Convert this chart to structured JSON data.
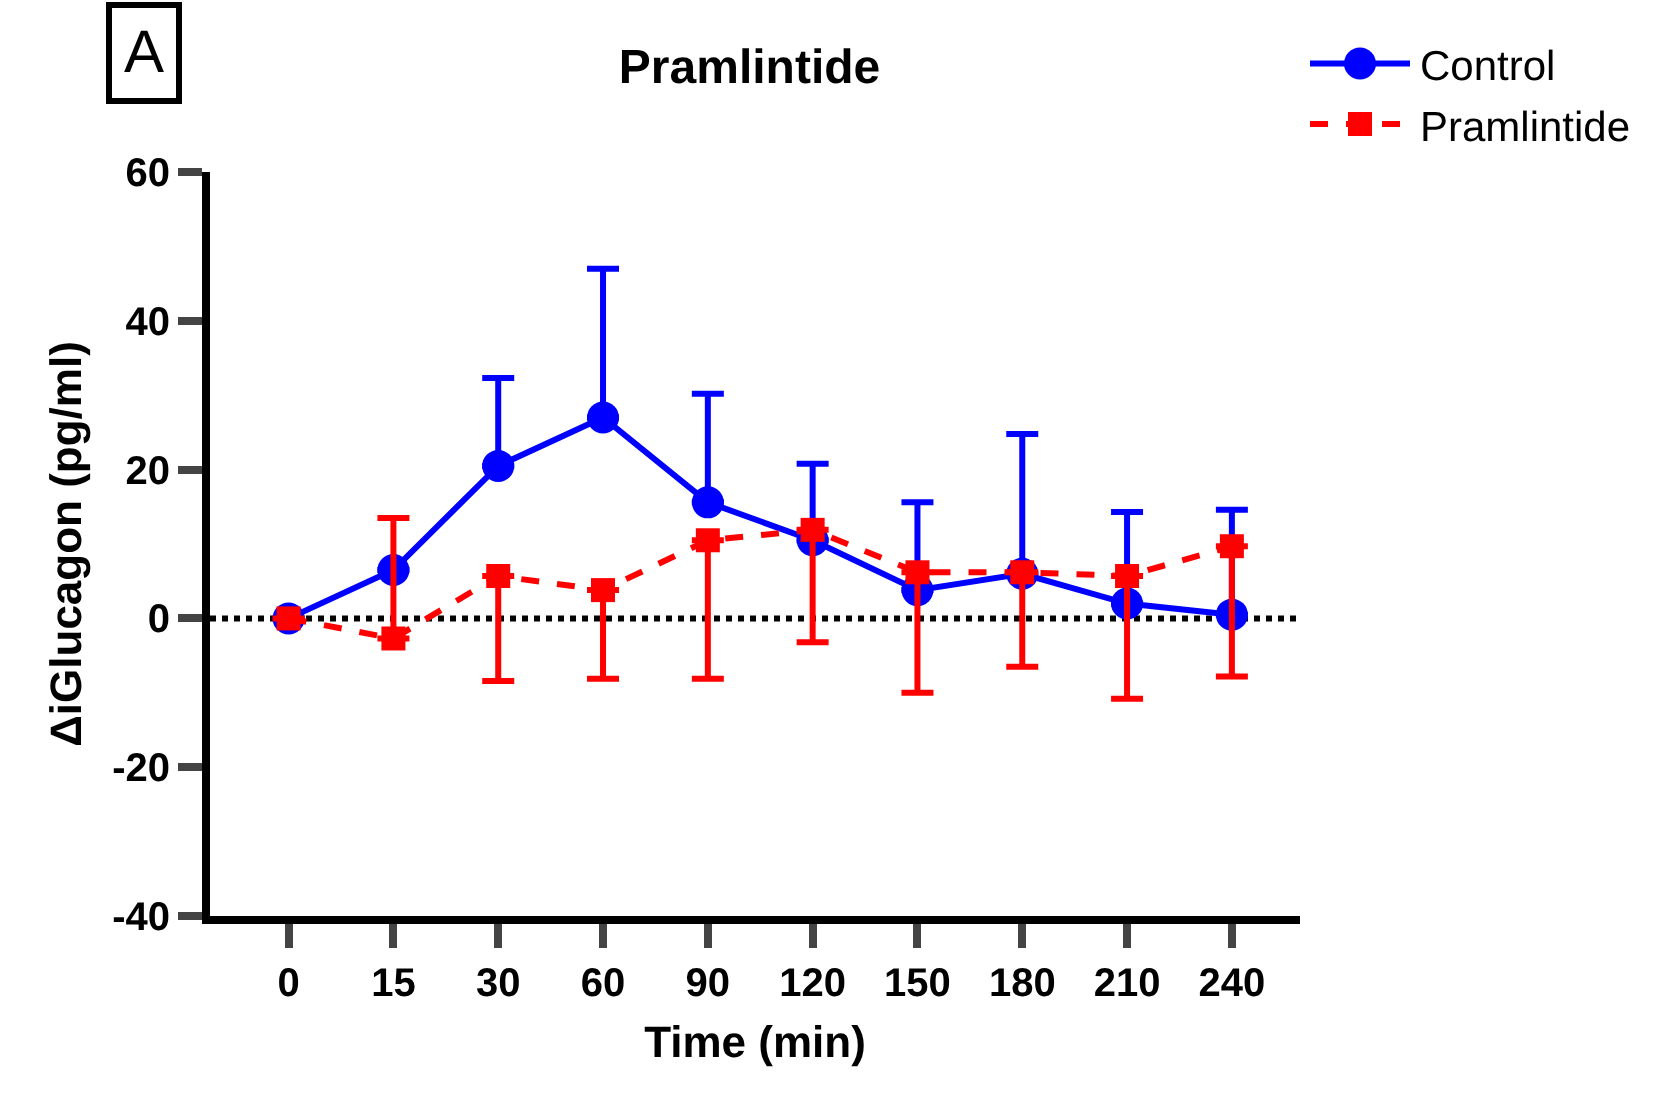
{
  "chart_data": {
    "type": "line",
    "title": "Pramlintide",
    "xlabel": "Time (min)",
    "ylabel": "ΔiGlucagon (pg/ml)",
    "annotations": [
      "A"
    ],
    "categories": [
      "0",
      "15",
      "30",
      "60",
      "90",
      "120",
      "150",
      "180",
      "210",
      "240"
    ],
    "series": [
      {
        "name": "Control",
        "color": "#0000ff",
        "marker": "circle",
        "line_style": "solid",
        "values": [
          0,
          6.5,
          20.5,
          27,
          15.6,
          10.5,
          3.8,
          6,
          2,
          0.5
        ],
        "errors": [
          null,
          null,
          [
            20.5,
            32.3
          ],
          [
            27,
            47
          ],
          [
            15.6,
            30.2
          ],
          [
            10.5,
            20.8
          ],
          [
            3.8,
            15.6
          ],
          [
            6,
            24.8
          ],
          [
            2,
            14.3
          ],
          [
            0.5,
            14.6
          ]
        ]
      },
      {
        "name": "Pramlintide",
        "color": "#ff0000",
        "marker": "square",
        "line_style": "dashed",
        "values": [
          0,
          -2.7,
          5.7,
          3.8,
          10.5,
          11.9,
          6.2,
          6.2,
          5.7,
          9.7
        ],
        "errors": [
          null,
          [
            -2.7,
            13.5
          ],
          [
            -8.4,
            5.7
          ],
          [
            -8.1,
            3.8
          ],
          [
            -8.1,
            10.5
          ],
          [
            -3.2,
            11.9
          ],
          [
            -10,
            6.2
          ],
          [
            -6.5,
            6.2
          ],
          [
            -10.8,
            5.7
          ],
          [
            -7.8,
            9.7
          ]
        ]
      }
    ],
    "ylim": [
      -40,
      60
    ],
    "yticks": [
      -40,
      -20,
      0,
      20,
      40,
      60
    ],
    "grid": false,
    "legend": "top right",
    "ref_lines": [
      {
        "axis": "y",
        "value": 0,
        "color": "#000000",
        "line_style": "dotted"
      }
    ]
  }
}
